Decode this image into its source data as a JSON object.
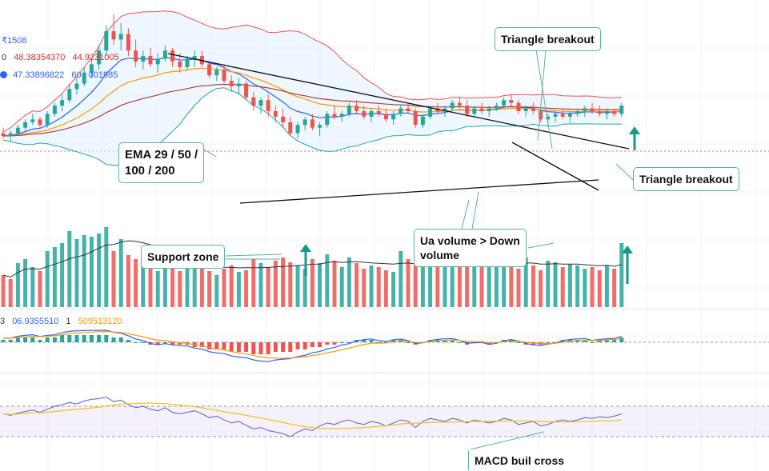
{
  "legend": {
    "vol_label": "₹1508",
    "ema_a": "48.38354370",
    "ema_b": "44.9231005",
    "ind_a": "47.33896822",
    "ind_b": "60",
    "ind_c": "001985",
    "macd_prefix": "3",
    "macd_a": "06.9355510",
    "macd_b": "1",
    "macd_c": "509513120"
  },
  "callouts": {
    "triangle_top": "Triangle breakout",
    "triangle_right": "Triangle breakout",
    "ema": [
      "EMA 29 / 50 /",
      "100 / 200"
    ],
    "support": "Support zone",
    "volume": [
      "Ua volume > Down",
      "volume"
    ],
    "macd": "MACD buil cross"
  },
  "colors": {
    "up": "#26a69a",
    "down": "#ef5350",
    "bb": "#f28b8b",
    "ema_short": "#2962ff",
    "ema_mid": "#ff9800",
    "ema_long": "#b23b3b",
    "rsi": "#5c5fc4",
    "rsi_ma": "#f2c01e",
    "trend": "#111111",
    "callout_border": "#58b3a3",
    "arrow": "#159a8a"
  },
  "chart_data": {
    "type": "candlestick",
    "candles": [
      [
        56,
        58,
        54,
        55
      ],
      [
        55,
        57,
        53,
        56
      ],
      [
        56,
        59,
        55,
        58
      ],
      [
        58,
        61,
        57,
        60
      ],
      [
        60,
        63,
        59,
        61
      ],
      [
        61,
        62,
        58,
        59
      ],
      [
        59,
        64,
        58,
        63
      ],
      [
        63,
        67,
        62,
        66
      ],
      [
        66,
        70,
        64,
        68
      ],
      [
        68,
        74,
        67,
        72
      ],
      [
        72,
        76,
        70,
        74
      ],
      [
        74,
        80,
        73,
        78
      ],
      [
        78,
        83,
        76,
        81
      ],
      [
        81,
        88,
        79,
        86
      ],
      [
        86,
        95,
        84,
        93
      ],
      [
        93,
        99,
        88,
        90
      ],
      [
        90,
        96,
        86,
        92
      ],
      [
        92,
        94,
        84,
        86
      ],
      [
        86,
        90,
        80,
        82
      ],
      [
        82,
        86,
        79,
        84
      ],
      [
        84,
        87,
        80,
        81
      ],
      [
        81,
        85,
        78,
        83
      ],
      [
        83,
        88,
        82,
        86
      ],
      [
        86,
        87,
        80,
        82
      ],
      [
        82,
        85,
        78,
        80
      ],
      [
        80,
        84,
        79,
        83
      ],
      [
        83,
        86,
        80,
        84
      ],
      [
        84,
        86,
        80,
        81
      ],
      [
        81,
        82,
        76,
        77
      ],
      [
        77,
        80,
        75,
        79
      ],
      [
        79,
        81,
        74,
        75
      ],
      [
        75,
        77,
        71,
        73
      ],
      [
        73,
        76,
        70,
        74
      ],
      [
        74,
        75,
        68,
        69
      ],
      [
        69,
        71,
        64,
        66
      ],
      [
        66,
        69,
        63,
        68
      ],
      [
        68,
        70,
        62,
        64
      ],
      [
        64,
        66,
        60,
        62
      ],
      [
        62,
        65,
        58,
        60
      ],
      [
        60,
        62,
        55,
        56
      ],
      [
        56,
        60,
        54,
        59
      ],
      [
        59,
        62,
        57,
        61
      ],
      [
        61,
        63,
        57,
        58
      ],
      [
        58,
        60,
        55,
        59
      ],
      [
        59,
        64,
        58,
        63
      ],
      [
        63,
        66,
        61,
        62
      ],
      [
        62,
        64,
        60,
        63
      ],
      [
        63,
        67,
        62,
        66
      ],
      [
        66,
        68,
        63,
        64
      ],
      [
        64,
        66,
        61,
        62
      ],
      [
        62,
        65,
        60,
        64
      ],
      [
        64,
        66,
        62,
        63
      ],
      [
        63,
        65,
        60,
        61
      ],
      [
        61,
        64,
        59,
        63
      ],
      [
        63,
        66,
        62,
        65
      ],
      [
        65,
        67,
        63,
        64
      ],
      [
        64,
        65,
        58,
        59
      ],
      [
        59,
        63,
        58,
        62
      ],
      [
        62,
        66,
        61,
        65
      ],
      [
        65,
        67,
        63,
        64
      ],
      [
        64,
        66,
        62,
        65
      ],
      [
        65,
        68,
        64,
        67
      ],
      [
        67,
        69,
        65,
        66
      ],
      [
        66,
        68,
        62,
        63
      ],
      [
        63,
        66,
        62,
        65
      ],
      [
        65,
        67,
        63,
        64
      ],
      [
        64,
        66,
        62,
        65
      ],
      [
        65,
        67,
        64,
        66
      ],
      [
        66,
        69,
        65,
        68
      ],
      [
        68,
        70,
        66,
        67
      ],
      [
        67,
        68,
        63,
        64
      ],
      [
        64,
        66,
        62,
        65
      ],
      [
        65,
        67,
        63,
        64
      ],
      [
        64,
        65,
        60,
        61
      ],
      [
        61,
        63,
        59,
        62
      ],
      [
        62,
        64,
        60,
        63
      ],
      [
        63,
        65,
        61,
        62
      ],
      [
        62,
        64,
        60,
        63
      ],
      [
        63,
        65,
        62,
        64
      ],
      [
        64,
        66,
        62,
        65
      ],
      [
        65,
        67,
        63,
        64
      ],
      [
        64,
        66,
        62,
        63
      ],
      [
        63,
        65,
        61,
        64
      ],
      [
        64,
        65,
        62,
        63
      ],
      [
        63,
        67,
        62,
        66
      ]
    ],
    "volume_up": [
      0,
      0,
      1,
      1,
      1,
      0,
      1,
      1,
      1,
      1,
      1,
      1,
      1,
      1,
      1,
      0,
      1,
      0,
      0,
      1,
      0,
      1,
      1,
      0,
      0,
      1,
      1,
      0,
      0,
      1,
      0,
      0,
      1,
      0,
      0,
      1,
      0,
      0,
      0,
      0,
      1,
      1,
      0,
      1,
      1,
      0,
      1,
      1,
      0,
      0,
      1,
      0,
      0,
      1,
      1,
      0,
      0,
      1,
      1,
      0,
      1,
      1,
      0,
      0,
      1,
      0,
      1,
      1,
      1,
      0,
      0,
      1,
      0,
      0,
      1,
      1,
      0,
      1,
      1,
      1,
      0,
      0,
      1,
      0,
      1
    ],
    "volume": [
      40,
      35,
      55,
      60,
      50,
      45,
      70,
      75,
      80,
      95,
      85,
      90,
      88,
      92,
      100,
      70,
      85,
      65,
      60,
      55,
      50,
      45,
      60,
      55,
      45,
      50,
      55,
      50,
      45,
      40,
      48,
      52,
      44,
      46,
      60,
      55,
      50,
      58,
      62,
      56,
      52,
      48,
      60,
      55,
      66,
      58,
      50,
      62,
      55,
      48,
      52,
      50,
      46,
      44,
      70,
      60,
      52,
      66,
      74,
      60,
      55,
      62,
      56,
      50,
      58,
      52,
      54,
      56,
      60,
      50,
      48,
      62,
      52,
      46,
      58,
      56,
      50,
      54,
      52,
      48,
      50,
      46,
      52,
      48,
      80
    ],
    "rsi": [
      60,
      58,
      61,
      63,
      65,
      62,
      66,
      70,
      72,
      75,
      73,
      77,
      79,
      80,
      82,
      76,
      78,
      72,
      68,
      70,
      66,
      64,
      68,
      62,
      60,
      62,
      64,
      60,
      55,
      57,
      52,
      48,
      50,
      45,
      40,
      42,
      38,
      36,
      34,
      30,
      36,
      40,
      38,
      44,
      48,
      46,
      50,
      52,
      48,
      46,
      50,
      48,
      44,
      48,
      52,
      50,
      42,
      50,
      54,
      52,
      50,
      54,
      52,
      48,
      52,
      50,
      48,
      50,
      54,
      52,
      46,
      48,
      50,
      44,
      46,
      50,
      52,
      50,
      52,
      55,
      54,
      56,
      55,
      57,
      60
    ],
    "macd_hist": [
      1,
      1,
      2,
      2,
      2,
      1,
      2,
      2,
      3,
      3,
      3,
      3,
      3,
      3,
      3,
      2,
      2,
      1,
      0,
      0,
      -1,
      -1,
      0,
      -1,
      -1,
      -1,
      -2,
      -2,
      -3,
      -3,
      -3,
      -4,
      -4,
      -4,
      -5,
      -5,
      -5,
      -4,
      -4,
      -4,
      -3,
      -3,
      -2,
      -2,
      -1,
      -1,
      0,
      0,
      1,
      1,
      1,
      0,
      0,
      1,
      1,
      0,
      -1,
      0,
      1,
      1,
      1,
      1,
      0,
      -1,
      0,
      0,
      -1,
      0,
      1,
      1,
      0,
      -1,
      -1,
      -1,
      0,
      0,
      1,
      1,
      1,
      1,
      0,
      1,
      1,
      1,
      2
    ],
    "ylim": [
      26,
      102
    ]
  }
}
